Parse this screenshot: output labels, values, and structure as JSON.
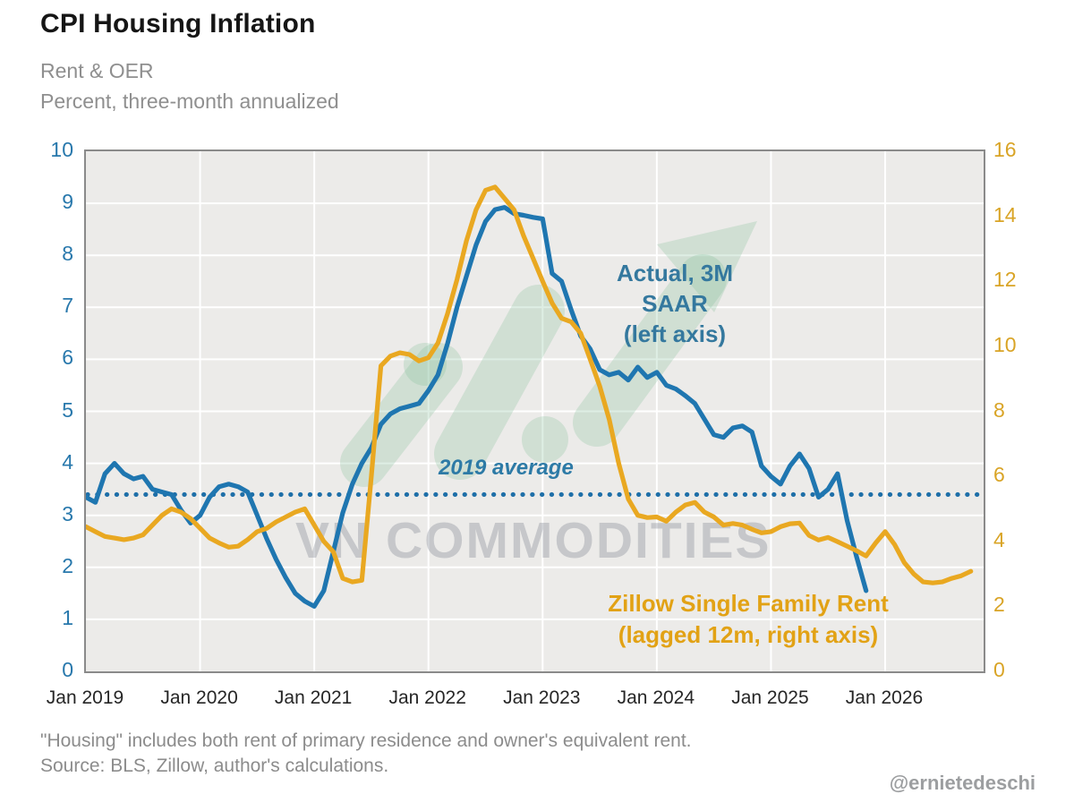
{
  "header": {
    "title": "CPI Housing Inflation",
    "subtitle_line1": "Rent & OER",
    "subtitle_line2": "Percent, three-month annualized"
  },
  "footer": {
    "footnote_line1": "\"Housing\" includes both rent of primary residence and owner's equivalent rent.",
    "footnote_line2": "Source: BLS, Zillow, author's calculations.",
    "handle": "@ernietedeschi"
  },
  "watermark": {
    "text": "VN COMMODITIES",
    "logo": "upward-arrow-logo",
    "logo_color": "#7fbd98",
    "text_color": "#8a8e98"
  },
  "colors": {
    "plot_background": "#ecebe9",
    "gridline": "#ffffff",
    "plot_border": "#8a8a8a",
    "left_axis_labels": "#2878ac",
    "right_axis_labels": "#d9a426",
    "x_axis_labels": "#262626",
    "blue_line": "#1f76b0",
    "gold_line": "#e9a821",
    "reference_dotted": "#1e6fa8"
  },
  "chart_data": {
    "type": "line",
    "title": "CPI Housing Inflation",
    "subtitle": "Rent & OER — Percent, three-month annualized",
    "grid": true,
    "x_axis": {
      "tick_labels": [
        "Jan 2019",
        "Jan 2020",
        "Jan 2021",
        "Jan 2022",
        "Jan 2023",
        "Jan 2024",
        "Jan 2025",
        "Jan 2026"
      ],
      "months_per_tick": 12,
      "start_month": "2019-01",
      "end_month": "2026-10"
    },
    "left_axis": {
      "range": [
        0,
        10
      ],
      "ticks": [
        0,
        1,
        2,
        3,
        4,
        5,
        6,
        7,
        8,
        9,
        10
      ],
      "series": "Actual, 3M SAAR"
    },
    "right_axis": {
      "range": [
        0,
        16
      ],
      "ticks": [
        0,
        2,
        4,
        6,
        8,
        10,
        12,
        14,
        16
      ],
      "series": "Zillow Single Family Rent (lagged 12m)"
    },
    "reference_line": {
      "label": "2019 average",
      "axis": "left",
      "value": 3.4,
      "style": "dotted"
    },
    "series": [
      {
        "name": "Actual, 3M SAAR (left axis)",
        "axis": "left",
        "color": "#1f76b0",
        "start_month": "2019-01",
        "frequency": "monthly",
        "values": [
          3.35,
          3.25,
          3.8,
          4.0,
          3.8,
          3.7,
          3.75,
          3.5,
          3.45,
          3.4,
          3.1,
          2.85,
          3.0,
          3.35,
          3.55,
          3.6,
          3.55,
          3.45,
          3.0,
          2.55,
          2.15,
          1.8,
          1.5,
          1.35,
          1.25,
          1.55,
          2.3,
          3.05,
          3.6,
          4.0,
          4.3,
          4.75,
          4.95,
          5.05,
          5.1,
          5.15,
          5.4,
          5.7,
          6.3,
          7.0,
          7.6,
          8.2,
          8.65,
          8.88,
          8.92,
          8.8,
          8.77,
          8.73,
          8.7,
          7.65,
          7.5,
          6.95,
          6.45,
          6.2,
          5.8,
          5.7,
          5.75,
          5.6,
          5.85,
          5.65,
          5.75,
          5.5,
          5.43,
          5.3,
          5.15,
          4.85,
          4.55,
          4.5,
          4.68,
          4.72,
          4.6,
          3.95,
          3.75,
          3.6,
          3.95,
          4.18,
          3.9,
          3.35,
          3.5,
          3.8,
          2.9,
          2.2,
          1.55
        ]
      },
      {
        "name": "Zillow Single Family Rent (lagged 12m, right axis)",
        "axis": "right",
        "color": "#e9a821",
        "start_month": "2019-01",
        "frequency": "monthly",
        "values": [
          4.45,
          4.3,
          4.15,
          4.1,
          4.05,
          4.1,
          4.2,
          4.5,
          4.8,
          5.0,
          4.9,
          4.7,
          4.4,
          4.1,
          3.95,
          3.82,
          3.85,
          4.05,
          4.3,
          4.4,
          4.6,
          4.75,
          4.9,
          5.0,
          4.5,
          4.0,
          3.68,
          2.86,
          2.75,
          2.8,
          6.0,
          9.4,
          9.7,
          9.8,
          9.75,
          9.55,
          9.65,
          10.1,
          11.0,
          12.05,
          13.25,
          14.2,
          14.8,
          14.9,
          14.55,
          14.2,
          13.4,
          12.7,
          12.0,
          11.33,
          10.86,
          10.75,
          10.4,
          9.6,
          8.77,
          7.75,
          6.4,
          5.3,
          4.8,
          4.73,
          4.75,
          4.62,
          4.9,
          5.12,
          5.2,
          4.9,
          4.75,
          4.5,
          4.55,
          4.5,
          4.37,
          4.26,
          4.3,
          4.45,
          4.54,
          4.56,
          4.18,
          4.04,
          4.12,
          3.99,
          3.85,
          3.71,
          3.55,
          3.95,
          4.3,
          3.9,
          3.35,
          3.0,
          2.75,
          2.72,
          2.75,
          2.86,
          2.94,
          3.08
        ]
      }
    ],
    "annotations": [
      {
        "id": "blue-series-label",
        "text": "Actual, 3M\nSAAR\n(left axis)",
        "color": "#34789e"
      },
      {
        "id": "average-label",
        "text": "2019 average",
        "color": "#2d7aa6"
      },
      {
        "id": "gold-series-label",
        "text": "Zillow Single Family Rent\n(lagged 12m, right axis)",
        "color": "#e2a215"
      }
    ]
  }
}
